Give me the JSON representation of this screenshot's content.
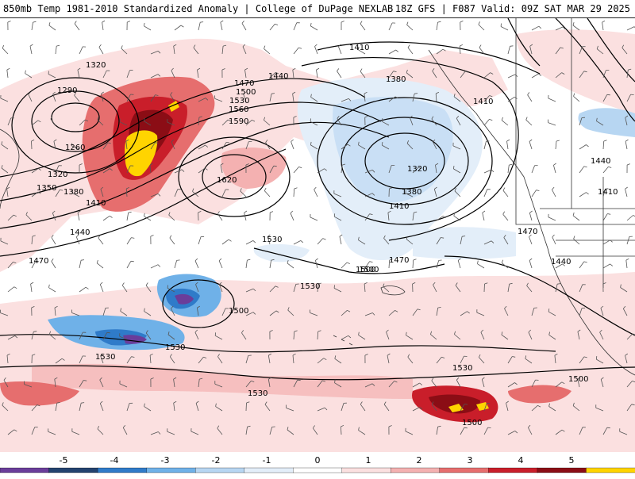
{
  "header": {
    "left_title": "850mb Temp 1981-2010 Standardized Anomaly | College of DuPage NEXLAB",
    "right_title": "18Z GFS | F087 Valid: 09Z SAT MAR 29 2025"
  },
  "contour_labels": [
    "1320",
    "1290",
    "1260",
    "1320",
    "1350",
    "1380",
    "1410",
    "1440",
    "1470",
    "1440",
    "1470",
    "1500",
    "1530",
    "1560",
    "1590",
    "1620",
    "1410",
    "1380",
    "1320",
    "1380",
    "1410",
    "1410",
    "1440",
    "1410",
    "1470",
    "1440",
    "1530",
    "1500",
    "1530",
    "1530",
    "1530",
    "1500",
    "1530",
    "1500",
    "1530",
    "1500",
    "1470",
    "1500"
  ],
  "colorbar": {
    "ticks": [
      "-5",
      "-4",
      "-3",
      "-2",
      "-1",
      "0",
      "1",
      "2",
      "3",
      "4",
      "5"
    ],
    "colors": [
      "#6a3d9a",
      "#23426f",
      "#2f7bc9",
      "#6fb1e8",
      "#b7d6f2",
      "#e3eef9",
      "#ffffff",
      "#fbe0e0",
      "#f4b1b1",
      "#e66e6e",
      "#c91e2a",
      "#8b0d15",
      "#ffd400"
    ]
  }
}
